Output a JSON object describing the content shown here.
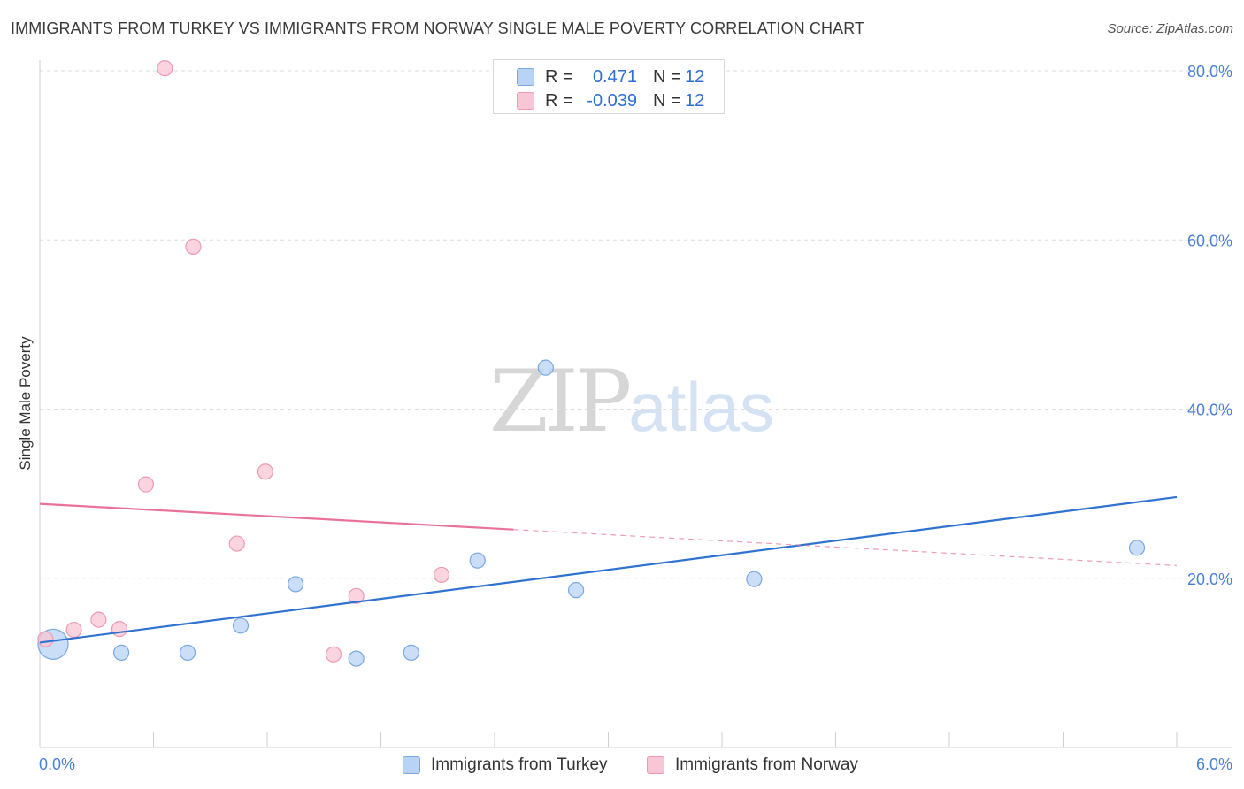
{
  "header": {
    "title": "IMMIGRANTS FROM TURKEY VS IMMIGRANTS FROM NORWAY SINGLE MALE POVERTY CORRELATION CHART",
    "source": "Source: ZipAtlas.com"
  },
  "watermark": {
    "zip": "ZIP",
    "atlas": "atlas"
  },
  "legend": {
    "turkey": {
      "r_label": "R =",
      "r_value": "0.471",
      "n_label": "N =",
      "n_value": "12"
    },
    "norway": {
      "r_label": "R =",
      "r_value": "-0.039",
      "n_label": "N =",
      "n_value": "12"
    }
  },
  "bottom_legend": {
    "turkey": "Immigrants from Turkey",
    "norway": "Immigrants from Norway"
  },
  "colors": {
    "turkey_fill": "#b8d3f5",
    "turkey_stroke": "#7aa7e0",
    "turkey_line": "#2f72d0",
    "norway_fill": "#f9c6d5",
    "norway_stroke": "#ee9ab3",
    "norway_line": "#e8729a",
    "axis_label": "#4a80d4",
    "grid": "#dddddd"
  },
  "chart_data": {
    "type": "scatter",
    "title": "IMMIGRANTS FROM TURKEY VS IMMIGRANTS FROM NORWAY SINGLE MALE POVERTY CORRELATION CHART",
    "xlabel": "",
    "ylabel": "Single Male Poverty",
    "xlim": [
      0.0,
      6.0
    ],
    "ylim": [
      0.0,
      80.0
    ],
    "x_tick_labels": [
      "0.0%",
      "6.0%"
    ],
    "y_ticks": [
      20,
      40,
      60,
      80
    ],
    "y_tick_labels": [
      "20.0%",
      "40.0%",
      "60.0%",
      "80.0%"
    ],
    "series": [
      {
        "name": "Immigrants from Turkey",
        "key": "turkey",
        "points": [
          {
            "x": 0.07,
            "y": 12.2,
            "large": true
          },
          {
            "x": 0.43,
            "y": 11.2
          },
          {
            "x": 0.78,
            "y": 11.2
          },
          {
            "x": 1.06,
            "y": 14.4
          },
          {
            "x": 1.35,
            "y": 19.3
          },
          {
            "x": 1.67,
            "y": 10.5
          },
          {
            "x": 1.96,
            "y": 11.2
          },
          {
            "x": 2.31,
            "y": 22.1
          },
          {
            "x": 2.67,
            "y": 44.9
          },
          {
            "x": 2.83,
            "y": 18.6
          },
          {
            "x": 3.77,
            "y": 19.9
          },
          {
            "x": 5.79,
            "y": 23.6
          }
        ],
        "trend": {
          "x0": 0.0,
          "y0": 12.4,
          "x1": 6.0,
          "y1": 29.6,
          "dashed_from": null
        }
      },
      {
        "name": "Immigrants from Norway",
        "key": "norway",
        "points": [
          {
            "x": 0.03,
            "y": 12.8
          },
          {
            "x": 0.18,
            "y": 13.9
          },
          {
            "x": 0.31,
            "y": 15.1
          },
          {
            "x": 0.42,
            "y": 14.0
          },
          {
            "x": 0.56,
            "y": 31.1
          },
          {
            "x": 0.66,
            "y": 80.3
          },
          {
            "x": 0.81,
            "y": 59.2
          },
          {
            "x": 1.04,
            "y": 24.1
          },
          {
            "x": 1.19,
            "y": 32.6
          },
          {
            "x": 1.55,
            "y": 11.0
          },
          {
            "x": 1.67,
            "y": 17.9
          },
          {
            "x": 2.12,
            "y": 20.4
          }
        ],
        "trend": {
          "x0": 0.0,
          "y0": 28.8,
          "x1": 6.0,
          "y1": 21.5,
          "dashed_from": 2.5
        }
      }
    ]
  }
}
